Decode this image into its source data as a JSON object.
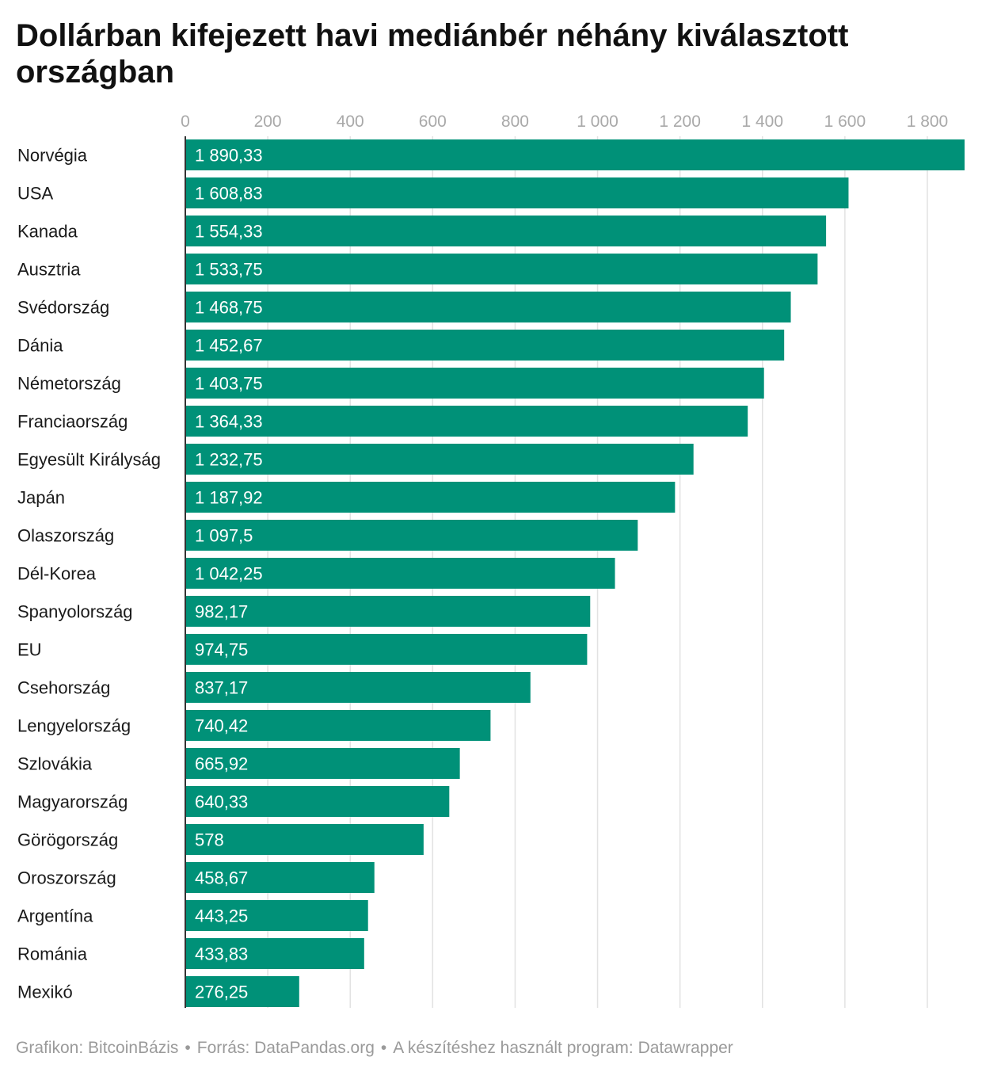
{
  "title": "Dollárban kifejezett havi mediánbér néhány kiválasztott országban",
  "footer": {
    "credit": "Grafikon: BitcoinBázis",
    "source": "Forrás: DataPandas.org",
    "tool": "A készítéshez használt program: Datawrapper",
    "separator": "•"
  },
  "colors": {
    "bar": "#009178",
    "bar_label": "#ffffff",
    "grid": "#e2e2e2",
    "tick": "#a9a9a9",
    "axis": "#333333"
  },
  "chart_data": {
    "type": "bar",
    "orientation": "horizontal",
    "title": "Dollárban kifejezett havi mediánbér néhány kiválasztott országban",
    "xlabel": "",
    "ylabel": "",
    "xlim": [
      0,
      1890.33
    ],
    "xticks": [
      0,
      200,
      400,
      600,
      800,
      1000,
      1200,
      1400,
      1600,
      1800
    ],
    "xtick_labels": [
      "0",
      "200",
      "400",
      "600",
      "800",
      "1 000",
      "1 200",
      "1 400",
      "1 600",
      "1 800"
    ],
    "tick_position": "top",
    "grid": true,
    "categories": [
      "Norvégia",
      "USA",
      "Kanada",
      "Ausztria",
      "Svédország",
      "Dánia",
      "Németország",
      "Franciaország",
      "Egyesült Királyság",
      "Japán",
      "Olaszország",
      "Dél-Korea",
      "Spanyolország",
      "EU",
      "Csehország",
      "Lengyelország",
      "Szlovákia",
      "Magyarország",
      "Görögország",
      "Oroszország",
      "Argentína",
      "Románia",
      "Mexikó"
    ],
    "values": [
      1890.33,
      1608.83,
      1554.33,
      1533.75,
      1468.75,
      1452.67,
      1403.75,
      1364.33,
      1232.75,
      1187.92,
      1097.5,
      1042.25,
      982.17,
      974.75,
      837.17,
      740.42,
      665.92,
      640.33,
      578,
      458.67,
      443.25,
      433.83,
      276.25
    ],
    "value_labels": [
      "1 890,33",
      "1 608,83",
      "1 554,33",
      "1 533,75",
      "1 468,75",
      "1 452,67",
      "1 403,75",
      "1 364,33",
      "1 232,75",
      "1 187,92",
      "1 097,5",
      "1 042,25",
      "982,17",
      "974,75",
      "837,17",
      "740,42",
      "665,92",
      "640,33",
      "578",
      "458,67",
      "443,25",
      "433,83",
      "276,25"
    ]
  }
}
